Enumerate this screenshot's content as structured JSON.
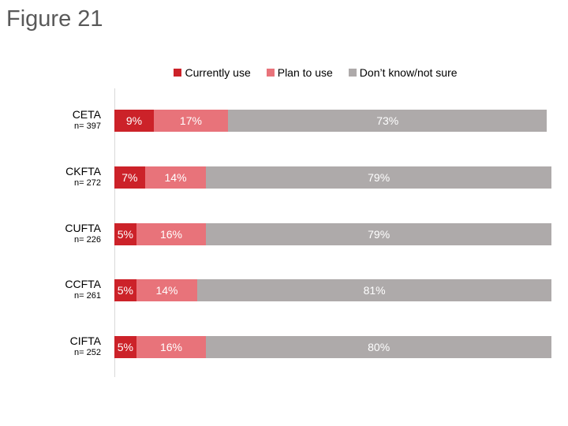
{
  "title": "Figure 21",
  "chart_data": {
    "type": "bar",
    "orientation": "horizontal",
    "stacked": true,
    "categories": [
      "CETA",
      "CKFTA",
      "CUFTA",
      "CCFTA",
      "CIFTA"
    ],
    "sample_sizes": [
      "n= 397",
      "n= 272",
      "n= 226",
      "n= 261",
      "n= 252"
    ],
    "series": [
      {
        "name": "Currently use",
        "color": "#cc2229",
        "values": [
          9,
          7,
          5,
          5,
          5
        ]
      },
      {
        "name": "Plan to use",
        "color": "#e8737a",
        "values": [
          17,
          14,
          16,
          14,
          16
        ]
      },
      {
        "name": "Don’t know/not sure",
        "color": "#aeaaaa",
        "values": [
          73,
          79,
          79,
          81,
          80
        ]
      }
    ],
    "value_format": "%",
    "xlim": [
      0,
      100
    ],
    "grid": false,
    "legend_position": "top"
  }
}
